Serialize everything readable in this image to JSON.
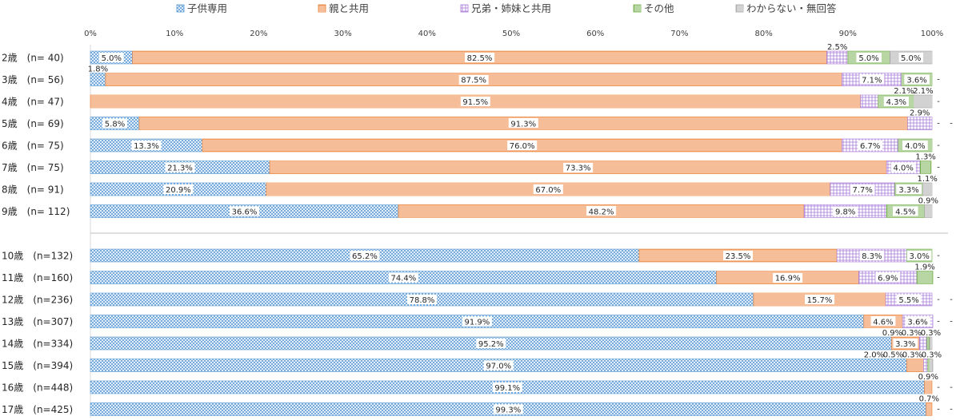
{
  "chart_data": {
    "type": "bar",
    "orientation": "horizontal",
    "stacked": "percent",
    "legend_position": "top",
    "grid": false,
    "xlim": [
      0,
      100
    ],
    "x_ticks": [
      "0%",
      "10%",
      "20%",
      "30%",
      "40%",
      "50%",
      "60%",
      "70%",
      "80%",
      "90%",
      "100%"
    ],
    "series": [
      {
        "name": "子供専用",
        "color": "#5b9bd5",
        "pattern": "cross"
      },
      {
        "name": "親と共用",
        "color": "#ed7d31",
        "pattern": "hline"
      },
      {
        "name": "兄弟・姉妹と共用",
        "color": "#a678d8",
        "pattern": "grid"
      },
      {
        "name": "その他",
        "color": "#70ad47",
        "pattern": "vline"
      },
      {
        "name": "わからない・無回答",
        "color": "#a5a5a5",
        "pattern": "vline"
      }
    ],
    "groups": [
      {
        "rows": [
          {
            "label": "2歳　(n=  40)",
            "values": [
              5.0,
              82.5,
              2.5,
              5.0,
              5.0
            ],
            "labels": [
              "5.0%",
              "82.5%",
              "2.5%",
              "5.0%",
              "5.0%"
            ]
          },
          {
            "label": "3歳　(n=  56)",
            "values": [
              1.8,
              87.5,
              7.1,
              3.6,
              0
            ],
            "labels": [
              "1.8%",
              "87.5%",
              "7.1%",
              "3.6%",
              "-"
            ]
          },
          {
            "label": "4歳　(n=  47)",
            "values": [
              0,
              91.5,
              2.1,
              4.3,
              2.1
            ],
            "labels": [
              "-",
              "91.5%",
              "2.1%",
              "4.3%",
              "2.1%"
            ]
          },
          {
            "label": "5歳　(n=  69)",
            "values": [
              5.8,
              91.3,
              2.9,
              0,
              0
            ],
            "labels": [
              "5.8%",
              "91.3%",
              "2.9%",
              "-",
              "-"
            ]
          },
          {
            "label": "6歳　(n=  75)",
            "values": [
              13.3,
              76.0,
              6.7,
              4.0,
              0
            ],
            "labels": [
              "13.3%",
              "76.0%",
              "6.7%",
              "4.0%",
              "-"
            ]
          },
          {
            "label": "7歳　(n=  75)",
            "values": [
              21.3,
              73.3,
              4.0,
              1.3,
              0
            ],
            "labels": [
              "21.3%",
              "73.3%",
              "4.0%",
              "1.3%",
              "-"
            ]
          },
          {
            "label": "8歳　(n=  91)",
            "values": [
              20.9,
              67.0,
              7.7,
              3.3,
              1.1
            ],
            "labels": [
              "20.9%",
              "67.0%",
              "7.7%",
              "3.3%",
              "1.1%"
            ]
          },
          {
            "label": "9歳　(n=  112)",
            "values": [
              36.6,
              48.2,
              9.8,
              4.5,
              0.9
            ],
            "labels": [
              "36.6%",
              "48.2%",
              "9.8%",
              "4.5%",
              "0.9%"
            ]
          }
        ]
      },
      {
        "rows": [
          {
            "label": "10歳　(n=132)",
            "values": [
              65.2,
              23.5,
              8.3,
              3.0,
              0
            ],
            "labels": [
              "65.2%",
              "23.5%",
              "8.3%",
              "3.0%",
              "-"
            ]
          },
          {
            "label": "11歳　(n=160)",
            "values": [
              74.4,
              16.9,
              6.9,
              1.9,
              0
            ],
            "labels": [
              "74.4%",
              "16.9%",
              "6.9%",
              "1.9%",
              "-"
            ]
          },
          {
            "label": "12歳　(n=236)",
            "values": [
              78.8,
              15.7,
              5.5,
              0,
              0
            ],
            "labels": [
              "78.8%",
              "15.7%",
              "5.5%",
              "-",
              "-"
            ]
          },
          {
            "label": "13歳　(n=307)",
            "values": [
              91.9,
              4.6,
              3.6,
              0,
              0
            ],
            "labels": [
              "91.9%",
              "4.6%",
              "3.6%",
              "-",
              "-"
            ]
          },
          {
            "label": "14歳　(n=334)",
            "values": [
              95.2,
              3.3,
              0.9,
              0.3,
              0.3
            ],
            "labels": [
              "95.2%",
              "3.3%",
              "0.9%",
              "0.3%",
              "0.3%"
            ]
          },
          {
            "label": "15歳　(n=394)",
            "values": [
              97.0,
              2.0,
              0.5,
              0.3,
              0.3
            ],
            "labels": [
              "97.0%",
              "2.0%",
              "0.5%",
              "0.3%",
              "0.3%"
            ]
          },
          {
            "label": "16歳　(n=448)",
            "values": [
              99.1,
              0.9,
              0,
              0,
              0
            ],
            "labels": [
              "99.1%",
              "0.9%",
              "-",
              "-",
              "-"
            ]
          },
          {
            "label": "17歳　(n=425)",
            "values": [
              99.3,
              0.7,
              0,
              0,
              0
            ],
            "labels": [
              "99.3%",
              "0.7%",
              "-",
              "-",
              "-"
            ]
          }
        ]
      }
    ]
  }
}
